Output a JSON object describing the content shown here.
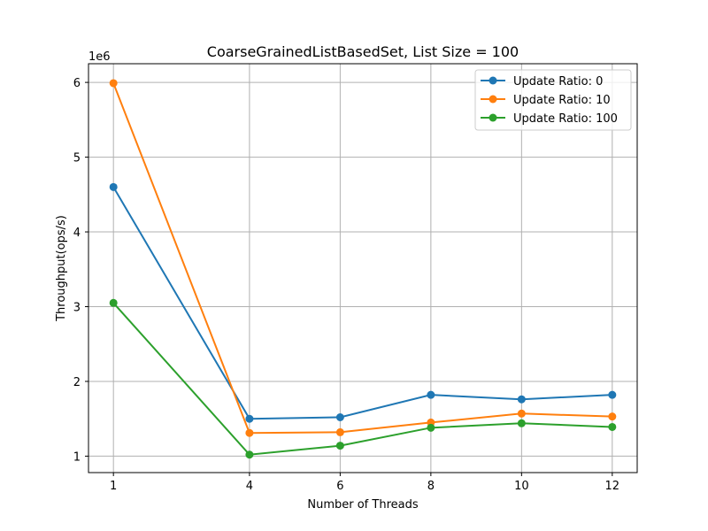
{
  "chart_data": {
    "type": "line",
    "title": "CoarseGrainedListBasedSet, List Size = 100",
    "xlabel": "Number of Threads",
    "ylabel": "Throughput(ops/s)",
    "y_offset_label": "1e6",
    "x": [
      1,
      4,
      6,
      8,
      10,
      12
    ],
    "x_ticks": [
      1,
      4,
      6,
      8,
      10,
      12
    ],
    "x_tick_labels": [
      "1",
      "4",
      "6",
      "8",
      "10",
      "12"
    ],
    "y_ticks": [
      1000000,
      2000000,
      3000000,
      4000000,
      5000000,
      6000000
    ],
    "y_tick_labels": [
      "1",
      "2",
      "3",
      "4",
      "5",
      "6"
    ],
    "xlim": [
      0.45,
      12.55
    ],
    "ylim": [
      780000,
      6250000
    ],
    "grid": true,
    "legend_position": "top-right",
    "series": [
      {
        "name": "Update Ratio: 0",
        "color": "#1f77b4",
        "values": [
          4600000,
          1500000,
          1520000,
          1820000,
          1760000,
          1820000
        ]
      },
      {
        "name": "Update Ratio: 10",
        "color": "#ff7f0e",
        "values": [
          5990000,
          1310000,
          1320000,
          1450000,
          1570000,
          1530000
        ]
      },
      {
        "name": "Update Ratio: 100",
        "color": "#2ca02c",
        "values": [
          3050000,
          1020000,
          1140000,
          1380000,
          1440000,
          1390000
        ]
      }
    ]
  }
}
